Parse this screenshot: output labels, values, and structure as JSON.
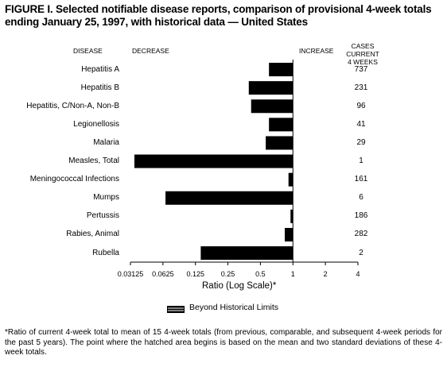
{
  "figure": {
    "title": "FIGURE I. Selected notifiable disease reports, comparison of provisional 4-week totals ending January 25, 1997, with historical data — United States",
    "headers": {
      "disease": "DISEASE",
      "decrease": "DECREASE",
      "increase": "INCREASE",
      "cases_line1": "CASES CURRENT",
      "cases_line2": "4 WEEKS"
    },
    "legend": "Beyond Historical Limits",
    "footnote": "*Ratio of current 4-week total to mean of 15 4-week totals (from previous, comparable, and subsequent 4-week periods for the past 5 years). The point where the hatched area begins is based on the mean and two standard deviations of these 4-week totals."
  },
  "chart_data": {
    "type": "bar",
    "orientation": "horizontal",
    "xlabel": "Ratio (Log Scale)*",
    "xscale": "log2",
    "xlim": [
      0.03125,
      4
    ],
    "xticks": [
      "0.03125",
      "0.0625",
      "0.125",
      "0.25",
      "0.5",
      "1",
      "2",
      "4"
    ],
    "xtick_values": [
      0.03125,
      0.0625,
      0.125,
      0.25,
      0.5,
      1,
      2,
      4
    ],
    "baseline": 1,
    "categories": [
      "Hepatitis A",
      "Hepatitis B",
      "Hepatitis, C/Non-A, Non-B",
      "Legionellosis",
      "Malaria",
      "Measles, Total",
      "Meningococcal Infections",
      "Mumps",
      "Pertussis",
      "Rabies, Animal",
      "Rubella"
    ],
    "values": [
      0.6,
      0.39,
      0.41,
      0.6,
      0.56,
      0.034,
      0.91,
      0.066,
      0.95,
      0.84,
      0.14
    ],
    "cases_current_4_weeks": [
      "737",
      "231",
      "96",
      "41",
      "29",
      "1",
      "161",
      "6",
      "186",
      "282",
      "2"
    ],
    "bar_color": "#000000",
    "grid": false
  }
}
